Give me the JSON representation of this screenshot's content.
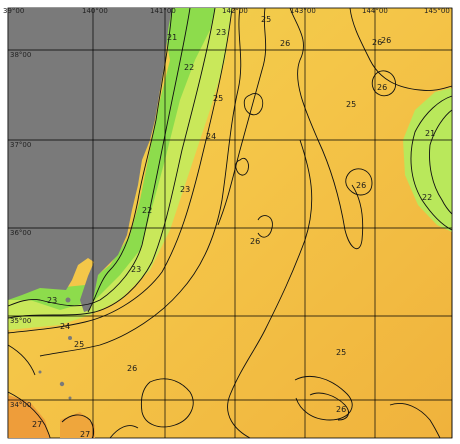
{
  "map": {
    "longitude_labels": [
      "39°00",
      "140°00",
      "141°00",
      "142°00",
      "143°00",
      "144°00",
      "145°00"
    ],
    "latitude_labels": [
      "38°00",
      "37°00",
      "36°00",
      "35°00",
      "34°00"
    ],
    "contour_labels": [
      "21",
      "23",
      "22",
      "25",
      "24",
      "23",
      "22",
      "23",
      "23",
      "24",
      "25",
      "26",
      "27",
      "27",
      "25",
      "26",
      "26",
      "26",
      "25",
      "26",
      "26",
      "21",
      "22",
      "26",
      "25",
      "26"
    ],
    "colors": {
      "land": "#7a7a7a",
      "sea_warm": "#f2b940",
      "sea_mid": "#f4c84a",
      "sea_cool": "#e9e35a",
      "sea_cold": "#b6e85a",
      "sea_coldest": "#7fd84a",
      "contour": "#111111",
      "grid": "#000000"
    }
  }
}
